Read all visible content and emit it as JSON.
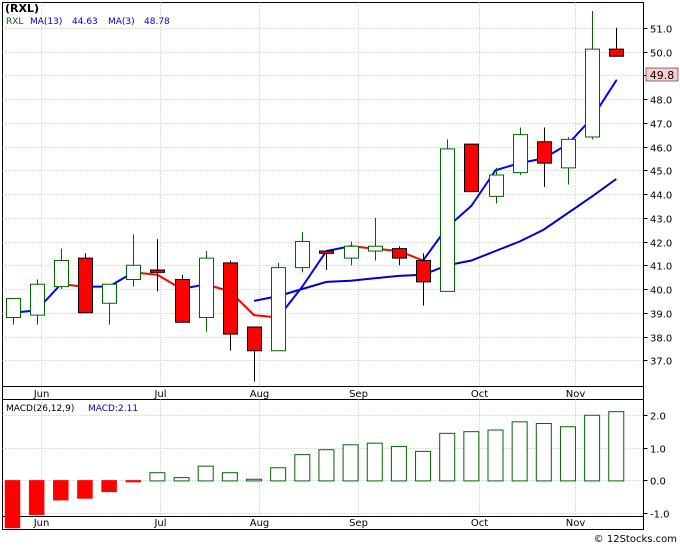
{
  "header": {
    "ticker": "(RXL)",
    "legend_rxl": "RXL",
    "legend_ma13": "MA(13)",
    "legend_ma13_value": "44.63",
    "legend_ma3": "MA(3)",
    "legend_ma3_value": "48.78"
  },
  "macd_panel": {
    "label": "MACD(26,12,9)",
    "value_label": "MACD:2.11"
  },
  "footer": {
    "copyright": "© 12Stocks.com"
  },
  "colors": {
    "up": "#006600",
    "down": "#ff0000",
    "ma13": "#0000cc",
    "ma3_up": "#0000ff",
    "ma3_down": "#ff0000",
    "last_price_box": "#ffcccc"
  },
  "chart_data": [
    {
      "type": "candlestick",
      "title": "(RXL)",
      "ylim": [
        36.0,
        52.0
      ],
      "y_ticks": [
        37.0,
        38.0,
        39.0,
        40.0,
        41.0,
        42.0,
        43.0,
        44.0,
        45.0,
        46.0,
        47.0,
        48.0,
        49.0,
        50.0,
        51.0
      ],
      "x_ticks": [
        "Jun",
        "Jul",
        "Aug",
        "Sep",
        "Oct",
        "Nov"
      ],
      "x_tick_index": [
        1.2,
        6.1,
        10.2,
        14.3,
        19.3,
        23.3
      ],
      "last_price": "49.8",
      "candles": [
        {
          "o": 38.8,
          "h": 39.5,
          "l": 38.5,
          "c": 39.6
        },
        {
          "o": 38.9,
          "h": 40.4,
          "l": 38.5,
          "c": 40.2
        },
        {
          "o": 40.1,
          "h": 41.7,
          "l": 40.0,
          "c": 41.2
        },
        {
          "o": 41.3,
          "h": 41.5,
          "l": 39.1,
          "c": 39.0
        },
        {
          "o": 39.4,
          "h": 40.2,
          "l": 38.5,
          "c": 40.2
        },
        {
          "o": 40.4,
          "h": 42.3,
          "l": 40.1,
          "c": 41.0
        },
        {
          "o": 40.8,
          "h": 42.1,
          "l": 39.9,
          "c": 40.7
        },
        {
          "o": 40.4,
          "h": 40.6,
          "l": 38.7,
          "c": 38.6
        },
        {
          "o": 38.8,
          "h": 41.6,
          "l": 38.2,
          "c": 41.3
        },
        {
          "o": 41.1,
          "h": 41.2,
          "l": 37.4,
          "c": 38.1
        },
        {
          "o": 38.4,
          "h": 38.4,
          "l": 36.1,
          "c": 37.4
        },
        {
          "o": 37.4,
          "h": 41.1,
          "l": 37.4,
          "c": 40.9
        },
        {
          "o": 40.9,
          "h": 42.4,
          "l": 40.7,
          "c": 42.0
        },
        {
          "o": 41.6,
          "h": 41.6,
          "l": 40.8,
          "c": 41.5
        },
        {
          "o": 41.3,
          "h": 42.0,
          "l": 41.0,
          "c": 41.8
        },
        {
          "o": 41.6,
          "h": 43.0,
          "l": 41.2,
          "c": 41.8
        },
        {
          "o": 41.7,
          "h": 41.8,
          "l": 41.0,
          "c": 41.3
        },
        {
          "o": 41.2,
          "h": 41.5,
          "l": 39.3,
          "c": 40.3
        },
        {
          "o": 39.9,
          "h": 46.3,
          "l": 39.9,
          "c": 45.9
        },
        {
          "o": 46.1,
          "h": 46.1,
          "l": 44.1,
          "c": 44.1
        },
        {
          "o": 43.9,
          "h": 45.1,
          "l": 43.6,
          "c": 44.8
        },
        {
          "o": 44.9,
          "h": 46.8,
          "l": 44.8,
          "c": 46.5
        },
        {
          "o": 46.2,
          "h": 46.8,
          "l": 44.3,
          "c": 45.3
        },
        {
          "o": 45.1,
          "h": 46.4,
          "l": 44.4,
          "c": 46.3
        },
        {
          "o": 46.4,
          "h": 51.7,
          "l": 46.3,
          "c": 50.1
        },
        {
          "o": 50.1,
          "h": 51.0,
          "l": 49.8,
          "c": 49.8
        }
      ],
      "series": [
        {
          "name": "MA(13)",
          "values": [
            null,
            null,
            null,
            null,
            null,
            null,
            null,
            null,
            null,
            null,
            39.5,
            39.7,
            40.0,
            40.3,
            40.35,
            40.45,
            40.55,
            40.6,
            41.0,
            41.2,
            41.6,
            42.0,
            42.5,
            43.2,
            43.9,
            44.63
          ]
        },
        {
          "name": "MA(3)",
          "values": [
            39.0,
            39.1,
            40.2,
            40.1,
            40.1,
            40.7,
            40.6,
            40.0,
            40.2,
            39.9,
            38.9,
            38.8,
            40.1,
            41.6,
            41.8,
            41.7,
            41.6,
            41.2,
            42.6,
            43.5,
            45.0,
            45.3,
            45.5,
            46.1,
            47.2,
            48.78
          ]
        }
      ]
    },
    {
      "type": "bar",
      "title": "MACD(26,12,9)",
      "ylim": [
        -1.45,
        2.45
      ],
      "y_ticks": [
        -1.0,
        0.0,
        1.0,
        2.0
      ],
      "x_ticks": [
        "Jun",
        "Jul",
        "Aug",
        "Sep",
        "Oct",
        "Nov"
      ],
      "values": [
        -1.5,
        -1.05,
        -0.6,
        -0.55,
        -0.35,
        -0.05,
        0.25,
        0.1,
        0.45,
        0.25,
        0.05,
        0.4,
        0.8,
        0.95,
        1.1,
        1.15,
        1.05,
        0.9,
        1.45,
        1.5,
        1.55,
        1.8,
        1.75,
        1.65,
        2.0,
        2.11
      ]
    }
  ]
}
